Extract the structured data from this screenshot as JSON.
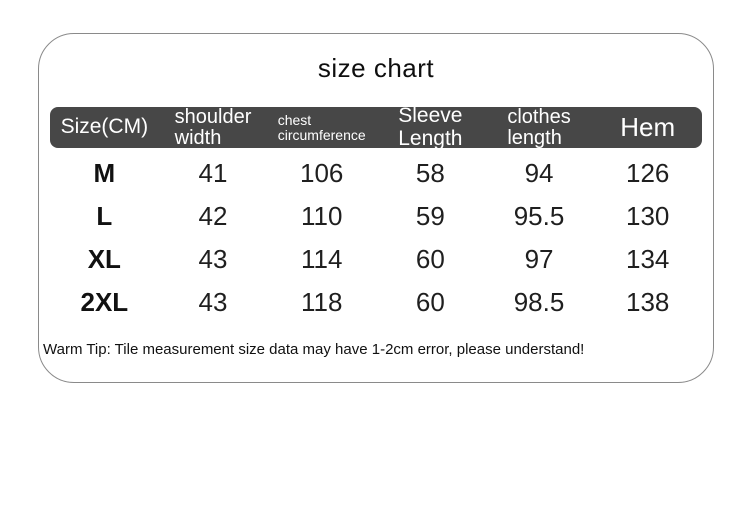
{
  "card": {
    "title": "size chart"
  },
  "table": {
    "columns": [
      {
        "label": "Size(CM)",
        "line1": "Size(CM)"
      },
      {
        "label": "shoulder width",
        "line1": "shoulder",
        "line2": "width"
      },
      {
        "label": "chest circumference",
        "line1": "chest",
        "line2": "circumference"
      },
      {
        "label": "Sleeve Length",
        "line1": "Sleeve",
        "line2": "Length"
      },
      {
        "label": "clothes length",
        "line1": "clothes",
        "line2": "length"
      },
      {
        "label": "Hem",
        "line1": "Hem"
      }
    ],
    "rows": [
      {
        "size": "M",
        "values": [
          "41",
          "106",
          "58",
          "94",
          "126"
        ]
      },
      {
        "size": "L",
        "values": [
          "42",
          "110",
          "59",
          "95.5",
          "130"
        ]
      },
      {
        "size": "XL",
        "values": [
          "43",
          "114",
          "60",
          "97",
          "134"
        ]
      },
      {
        "size": "2XL",
        "values": [
          "43",
          "118",
          "60",
          "98.5",
          "138"
        ]
      }
    ]
  },
  "footer": {
    "warm_tip": "Warm Tip: Tile measurement size data may have 1-2cm error, please understand!"
  },
  "colors": {
    "header_bg": "#474747",
    "header_text": "#ffffff",
    "body_text": "#1f1f1f",
    "card_border": "#8a8a8a",
    "background": "#ffffff"
  }
}
